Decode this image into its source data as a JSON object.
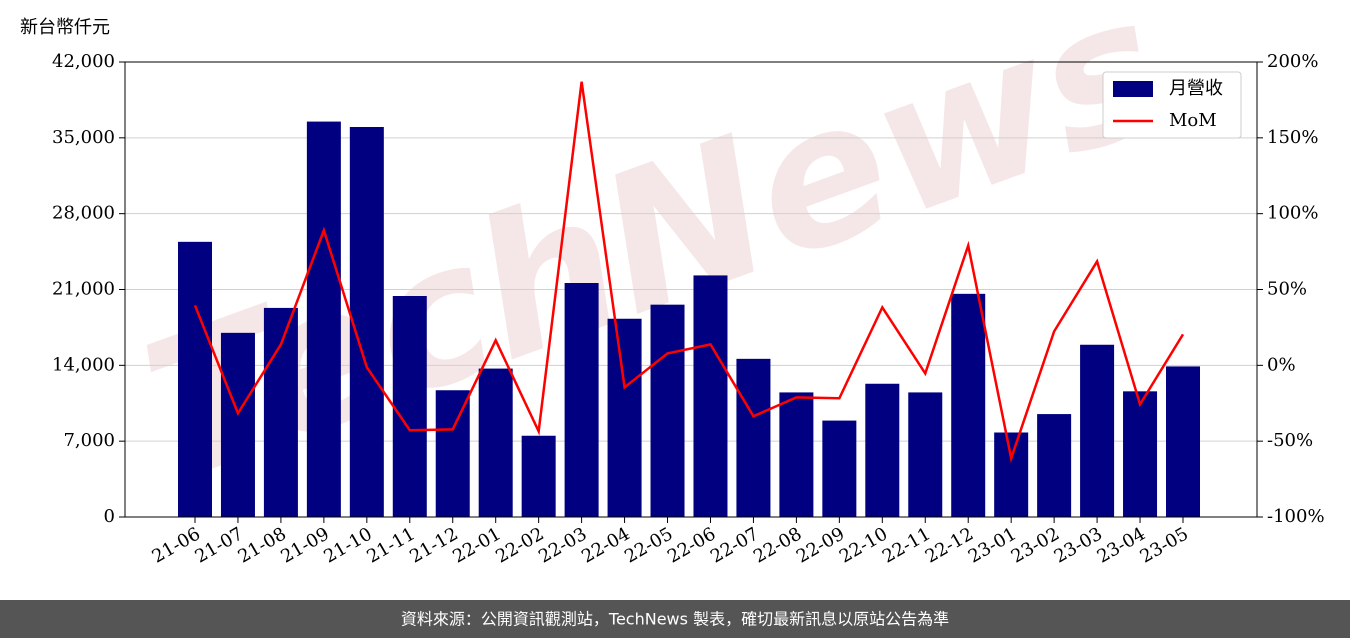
{
  "chart_data": {
    "type": "bar",
    "y_label": "新台幣仟元",
    "watermark": "TechNews",
    "footer": "資料來源：公開資訊觀測站，TechNews 製表，確切最新訊息以原站公告為準",
    "categories": [
      "21-06",
      "21-07",
      "21-08",
      "21-09",
      "21-10",
      "21-11",
      "21-12",
      "22-01",
      "22-02",
      "22-03",
      "22-04",
      "22-05",
      "22-06",
      "22-07",
      "22-08",
      "22-09",
      "22-10",
      "22-11",
      "22-12",
      "23-01",
      "23-02",
      "23-03",
      "23-04",
      "23-05"
    ],
    "series": [
      {
        "name": "月營收",
        "type": "bar",
        "color": "#000080",
        "values": [
          25400,
          17000,
          19300,
          36500,
          36000,
          20400,
          11700,
          13700,
          7500,
          21600,
          18300,
          19600,
          22300,
          14600,
          11500,
          8900,
          12300,
          11500,
          20600,
          7800,
          9500,
          15900,
          11600,
          13900
        ]
      },
      {
        "name": "MoM",
        "type": "line",
        "axis": "y2",
        "color": "#ff0000",
        "values": [
          39.5,
          -31.6,
          13.8,
          89,
          -1.3,
          -42.8,
          -42.2,
          16.5,
          -43.5,
          187,
          -14.5,
          7.9,
          13.8,
          -33.6,
          -21.1,
          -21.7,
          38.2,
          -5.3,
          79,
          -61.3,
          22.4,
          68.5,
          -25.7,
          20.4
        ]
      }
    ],
    "ylim": [
      0,
      42000
    ],
    "yticks": [
      {
        "value": 0,
        "label": "0"
      },
      {
        "value": 7000,
        "label": "7,000"
      },
      {
        "value": 14000,
        "label": "14,000"
      },
      {
        "value": 21000,
        "label": "21,000"
      },
      {
        "value": 28000,
        "label": "28,000"
      },
      {
        "value": 35000,
        "label": "35,000"
      },
      {
        "value": 42000,
        "label": "42,000"
      }
    ],
    "y2lim": [
      -100,
      200
    ],
    "y2ticks": [
      {
        "value": -100,
        "label": "-100%"
      },
      {
        "value": -50,
        "label": "-50%"
      },
      {
        "value": 0,
        "label": "0%"
      },
      {
        "value": 50,
        "label": "50%"
      },
      {
        "value": 100,
        "label": "100%"
      },
      {
        "value": 150,
        "label": "150%"
      },
      {
        "value": 200,
        "label": "200%"
      }
    ],
    "grid": true,
    "legend": "upper right"
  }
}
